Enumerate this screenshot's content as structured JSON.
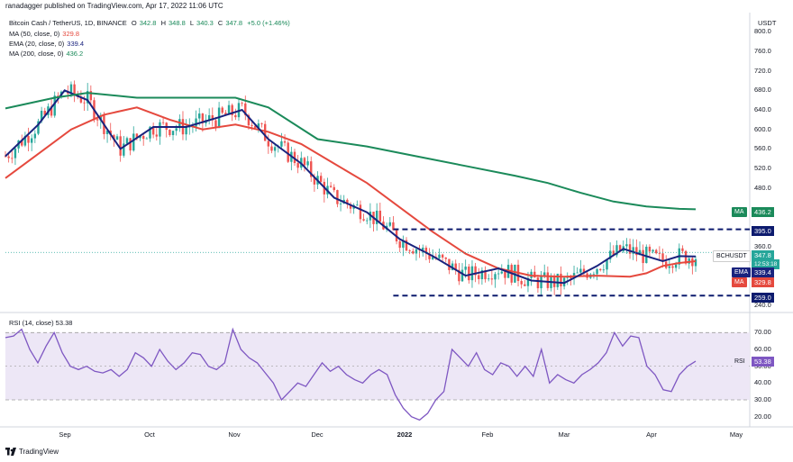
{
  "header": {
    "publisher": "ranadagger published on TradingView.com, Apr 17, 2022 11:06 UTC"
  },
  "legend": {
    "symbol": "Bitcoin Cash / TetherUS, 1D, BINANCE",
    "o_label": "O",
    "o_val": "342.8",
    "h_label": "H",
    "h_val": "348.8",
    "l_label": "L",
    "l_val": "340.3",
    "c_label": "C",
    "c_val": "347.8",
    "chg": "+5.0 (+1.46%)",
    "ma50": "MA (50, close, 0)",
    "ma50_val": "329.8",
    "ema20": "EMA (20, close, 0)",
    "ema20_val": "339.4",
    "ma200": "MA (200, close, 0)",
    "ma200_val": "436.2"
  },
  "axis": {
    "currency": "USDT",
    "price_ticks": [
      "800.0",
      "760.0",
      "720.0",
      "680.0",
      "640.0",
      "600.0",
      "560.0",
      "520.0",
      "480.0",
      "360.0",
      "280.0",
      "240.0"
    ],
    "rsi_ticks": [
      "70.00",
      "60.00",
      "50.00",
      "40.00",
      "30.00",
      "20.00"
    ],
    "x_ticks": [
      "Sep",
      "Oct",
      "Nov",
      "Dec",
      "2022",
      "Feb",
      "Mar",
      "Apr",
      "May"
    ]
  },
  "tags": {
    "ma200_label": "MA",
    "ma200_val": "436.2",
    "resistance": "395.0",
    "symbol_label": "BCHUSDT",
    "price": "347.8",
    "countdown": "12:53:18",
    "ema_label": "EMA",
    "ema_val": "339.4",
    "ma_label": "MA",
    "ma_val": "329.8",
    "support": "259.0",
    "rsi_label": "RSI",
    "rsi_val": "53.38"
  },
  "rsi_legend": "RSI (14, close) 53.38",
  "brand": "TradingView",
  "colors": {
    "up": "#26a69a",
    "down": "#ef5350",
    "ema": "#1a237e",
    "ma50": "#e5493e",
    "ma200": "#1b8a5a",
    "rsi": "#7e57c2",
    "navy_dash": "#0d1b6e"
  },
  "chart_data": [
    {
      "type": "candlestick",
      "title": "Bitcoin Cash / TetherUS, 1D, BINANCE",
      "x_ticks": [
        "Sep",
        "Oct",
        "Nov",
        "Dec",
        "2022",
        "Feb",
        "Mar",
        "Apr",
        "May"
      ],
      "ylim": [
        230,
        810
      ],
      "series": [
        {
          "name": "MA (50, close, 0)",
          "last": 329.8,
          "points": [
            [
              0,
              500
            ],
            [
              10,
              550
            ],
            [
              20,
              600
            ],
            [
              30,
              630
            ],
            [
              40,
              645
            ],
            [
              50,
              620
            ],
            [
              60,
              600
            ],
            [
              70,
              610
            ],
            [
              80,
              595
            ],
            [
              90,
              570
            ],
            [
              100,
              530
            ],
            [
              110,
              490
            ],
            [
              120,
              440
            ],
            [
              130,
              390
            ],
            [
              140,
              345
            ],
            [
              150,
              315
            ],
            [
              160,
              300
            ],
            [
              170,
              298
            ],
            [
              180,
              300
            ],
            [
              190,
              298
            ],
            [
              195,
              305
            ],
            [
              200,
              320
            ],
            [
              205,
              326
            ],
            [
              210,
              329.8
            ]
          ]
        },
        {
          "name": "EMA (20, close, 0)",
          "last": 339.4,
          "points": [
            [
              0,
              545
            ],
            [
              10,
              610
            ],
            [
              18,
              680
            ],
            [
              25,
              660
            ],
            [
              35,
              560
            ],
            [
              45,
              605
            ],
            [
              55,
              605
            ],
            [
              65,
              625
            ],
            [
              72,
              640
            ],
            [
              80,
              580
            ],
            [
              90,
              530
            ],
            [
              100,
              460
            ],
            [
              110,
              430
            ],
            [
              120,
              375
            ],
            [
              130,
              340
            ],
            [
              140,
              300
            ],
            [
              150,
              315
            ],
            [
              160,
              290
            ],
            [
              170,
              285
            ],
            [
              180,
              320
            ],
            [
              188,
              355
            ],
            [
              195,
              340
            ],
            [
              200,
              330
            ],
            [
              205,
              340
            ],
            [
              210,
              339.4
            ]
          ]
        },
        {
          "name": "MA (200, close, 0)",
          "last": 436.2,
          "points": [
            [
              0,
              643
            ],
            [
              15,
              665
            ],
            [
              25,
              675
            ],
            [
              40,
              665
            ],
            [
              55,
              665
            ],
            [
              70,
              665
            ],
            [
              80,
              645
            ],
            [
              95,
              580
            ],
            [
              110,
              565
            ],
            [
              125,
              545
            ],
            [
              140,
              525
            ],
            [
              155,
              505
            ],
            [
              165,
              490
            ],
            [
              175,
              470
            ],
            [
              185,
              452
            ],
            [
              195,
              442
            ],
            [
              205,
              437
            ],
            [
              210,
              436.2
            ]
          ]
        }
      ],
      "levels": [
        {
          "label": "resistance",
          "value": 395.0
        },
        {
          "label": "support",
          "value": 259.0
        }
      ],
      "last_price": 347.8
    },
    {
      "type": "line",
      "title": "RSI (14, close)",
      "ylim": [
        15,
        75
      ],
      "bands": [
        30,
        70
      ],
      "series": [
        {
          "name": "RSI",
          "last": 53.38,
          "values": [
            67,
            68,
            72,
            60,
            52,
            62,
            70,
            58,
            50,
            48,
            50,
            47,
            46,
            48,
            44,
            48,
            58,
            55,
            50,
            60,
            53,
            48,
            52,
            58,
            57,
            50,
            48,
            52,
            72,
            60,
            55,
            52,
            46,
            40,
            30,
            35,
            40,
            38,
            45,
            52,
            47,
            50,
            45,
            42,
            40,
            45,
            48,
            45,
            33,
            25,
            20,
            18,
            22,
            30,
            35,
            60,
            55,
            50,
            58,
            48,
            45,
            52,
            50,
            44,
            50,
            44,
            60,
            40,
            45,
            42,
            40,
            45,
            48,
            52,
            58,
            70,
            62,
            68,
            67,
            50,
            45,
            36,
            35,
            45,
            50,
            53
          ]
        }
      ]
    }
  ]
}
